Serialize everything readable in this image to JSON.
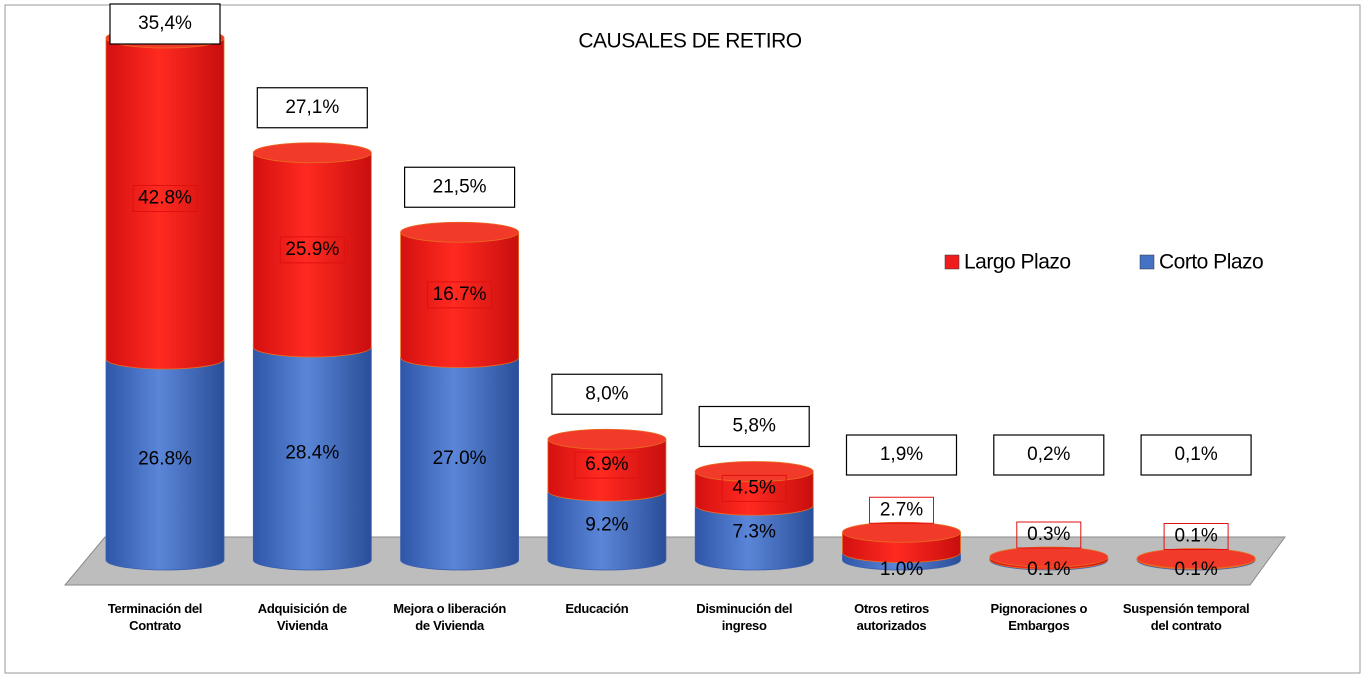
{
  "chart_data": {
    "type": "bar3d_stacked",
    "title": "CAUSALES DE RETIRO",
    "categories": [
      "Terminación del Contrato",
      "Adquisición de Vivienda",
      "Mejora o liberación de Vivienda",
      "Educación",
      "Disminución del ingreso",
      "Otros retiros autorizados",
      "Pignoraciones o Embargos",
      "Suspensión temporal del contrato"
    ],
    "series": [
      {
        "name": "Corto Plazo",
        "color": "#4472c4",
        "values": [
          26.8,
          28.4,
          27.0,
          9.2,
          7.3,
          1.0,
          0.1,
          0.1
        ],
        "value_labels": [
          "26.8%",
          "28.4%",
          "27.0%",
          "9.2%",
          "7.3%",
          "1.0%",
          "0.1%",
          "0.1%"
        ]
      },
      {
        "name": "Largo Plazo",
        "color": "#ee1c1c",
        "values": [
          42.8,
          25.9,
          16.7,
          6.9,
          4.5,
          2.7,
          0.3,
          0.1
        ],
        "value_labels": [
          "42.8%",
          "25.9%",
          "16.7%",
          "6.9%",
          "4.5%",
          "2.7%",
          "0.3%",
          "0.1%"
        ]
      }
    ],
    "shares": {
      "values": [
        35.4,
        27.1,
        21.5,
        8.0,
        5.8,
        1.9,
        0.2,
        0.1
      ],
      "value_labels": [
        "35,4%",
        "27,1%",
        "21,5%",
        "8,0%",
        "5,8%",
        "1,9%",
        "0,2%",
        "0,1%"
      ]
    },
    "legend": "right"
  }
}
